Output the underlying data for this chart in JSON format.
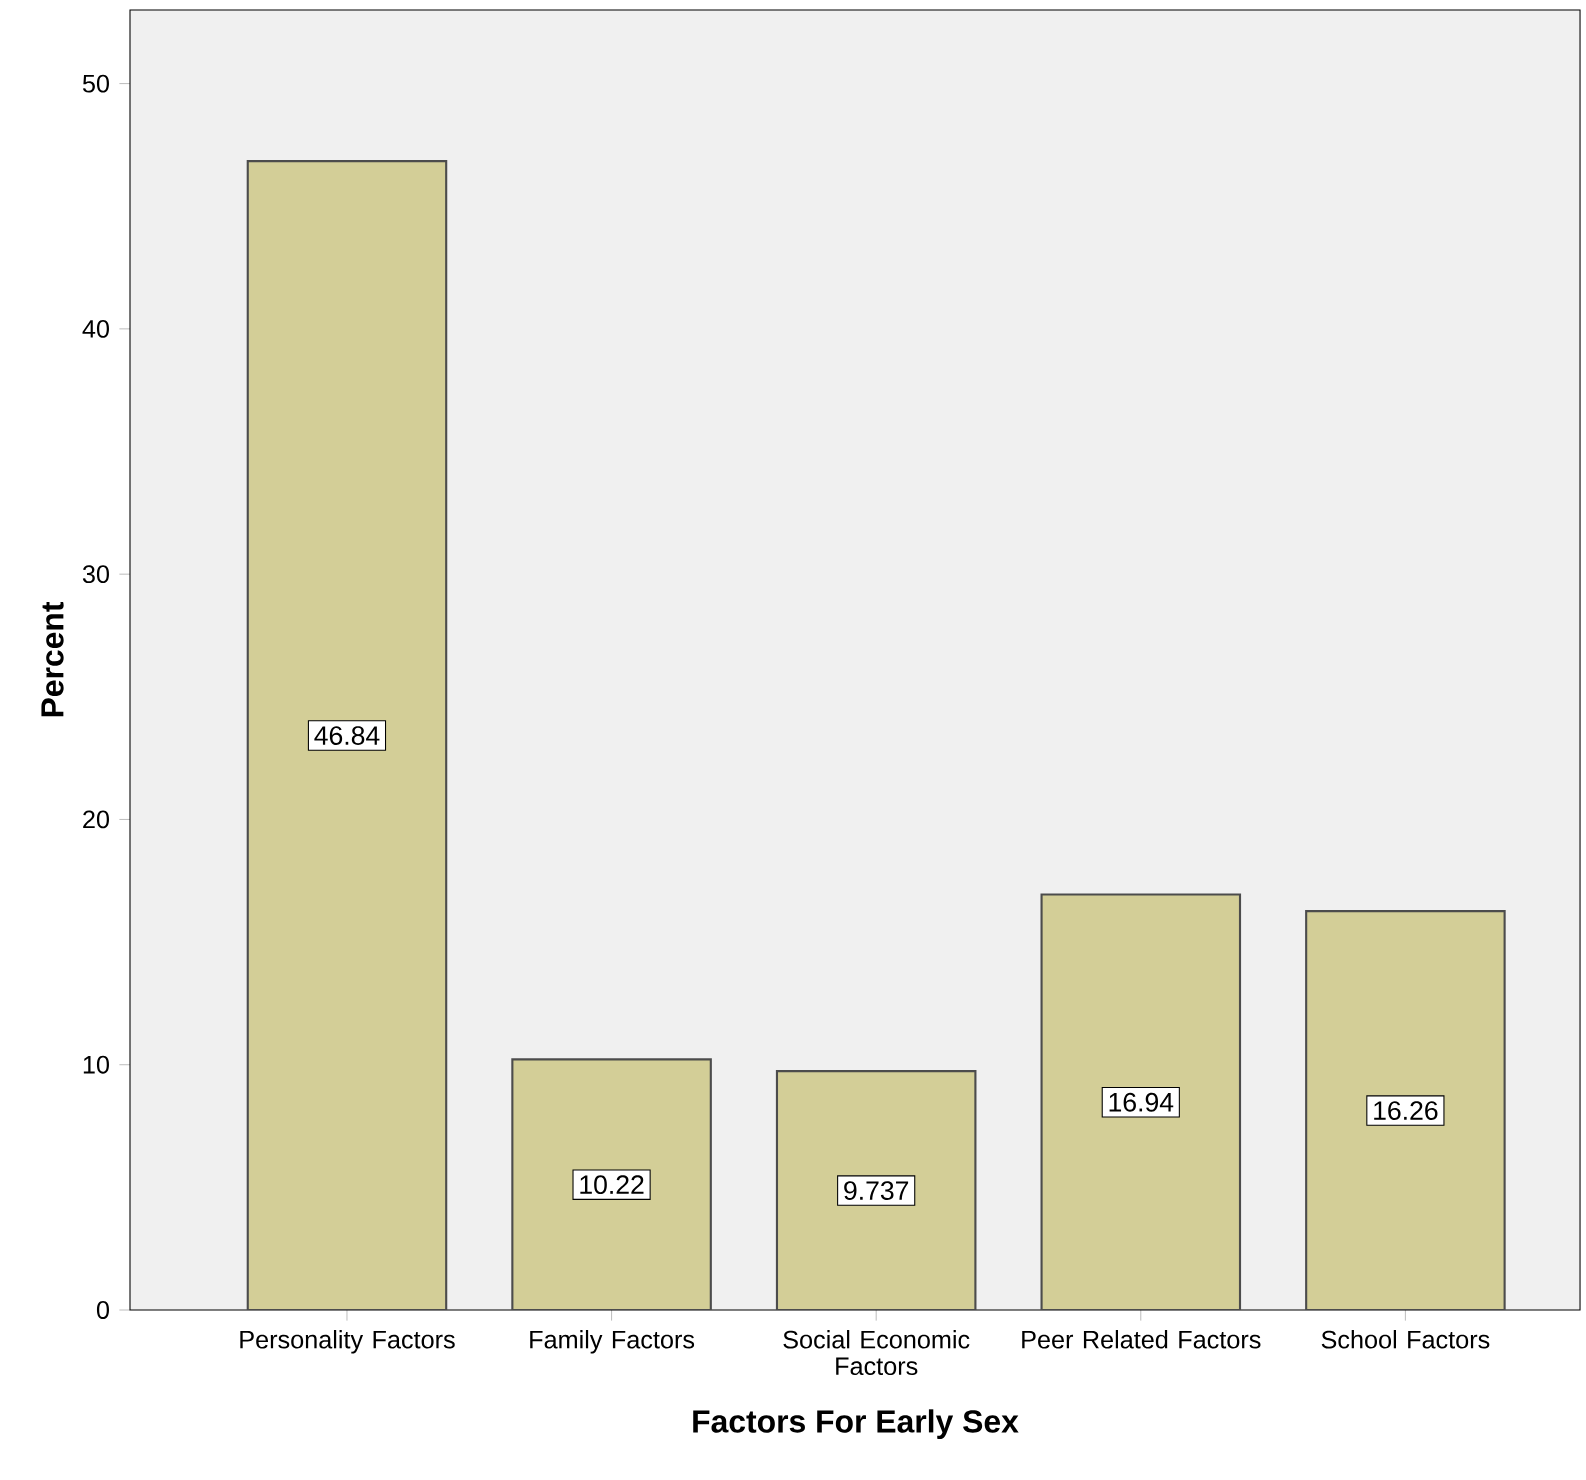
{
  "chart_data": {
    "type": "bar",
    "xlabel": "Factors For Early Sex",
    "ylabel": "Percent",
    "categories": [
      "Personality Factors",
      "Family Factors",
      "Social Economic Factors",
      "Peer Related Factors",
      "School Factors"
    ],
    "values": [
      46.84,
      10.22,
      9.737,
      16.94,
      16.26
    ],
    "color": "#d3ce97",
    "ylim": [
      0,
      53
    ],
    "yticks": [
      0,
      10,
      20,
      30,
      40,
      50
    ],
    "data_labels": true,
    "grid": false
  }
}
